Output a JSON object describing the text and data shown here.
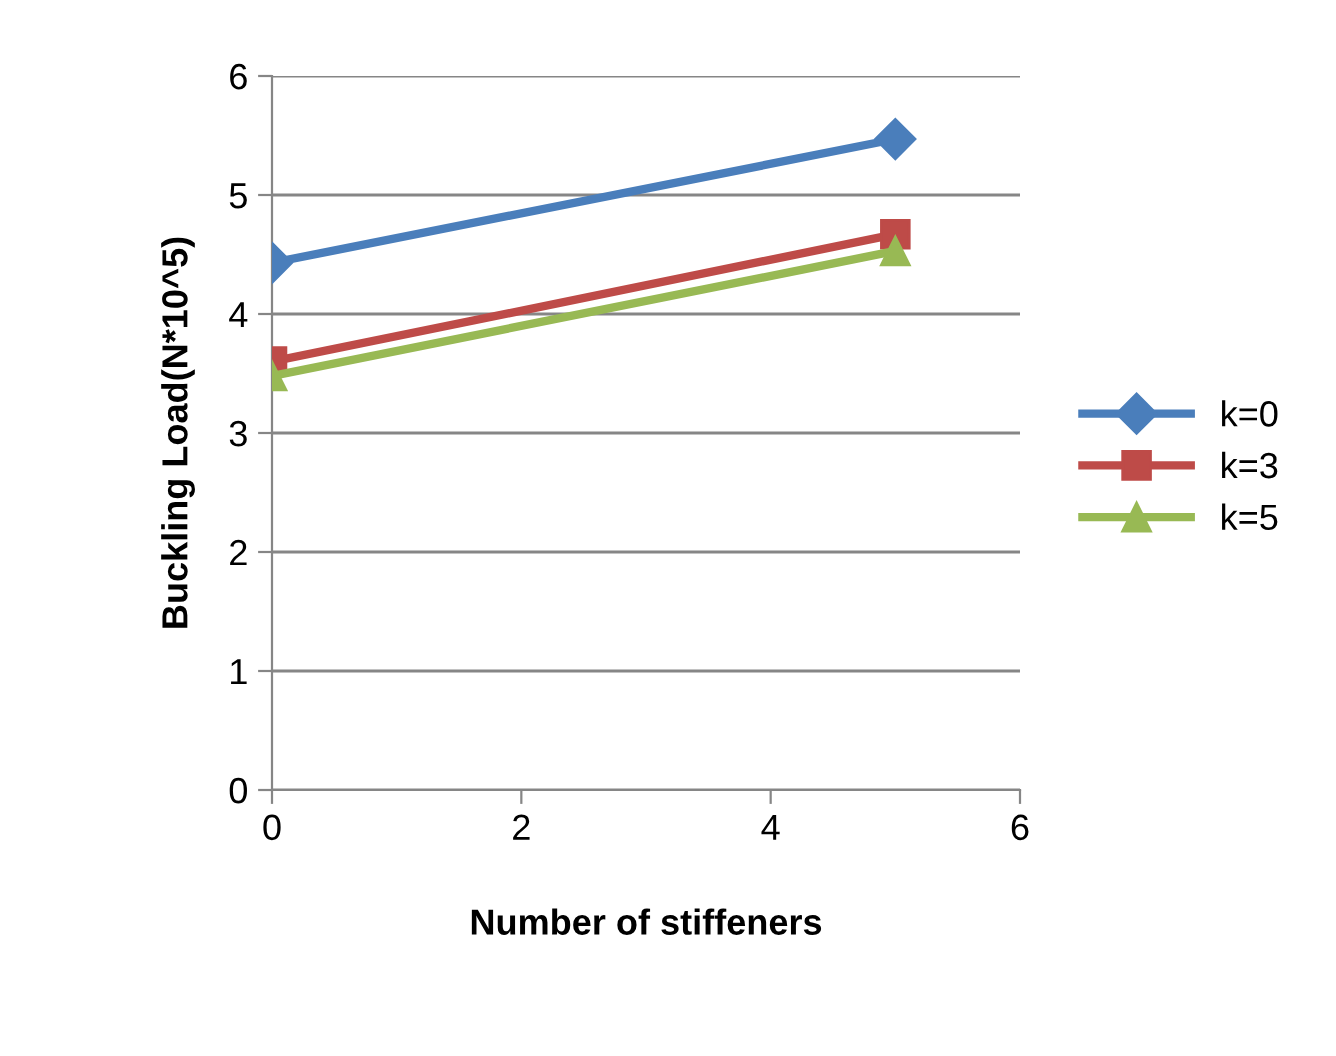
{
  "chart_data": {
    "type": "line",
    "xlabel": "Number of stiffeners",
    "ylabel": "Buckling Load(N*10^5)",
    "x": [
      0,
      5
    ],
    "series": [
      {
        "name": "k=0",
        "color": "#4a7ebb",
        "marker": "diamond",
        "values": [
          4.43,
          5.47
        ]
      },
      {
        "name": "k=3",
        "color": "#be4b48",
        "marker": "square",
        "values": [
          3.6,
          4.67
        ]
      },
      {
        "name": "k=5",
        "color": "#98b954",
        "marker": "triangle",
        "values": [
          3.48,
          4.53
        ]
      }
    ],
    "xlim": [
      0,
      6
    ],
    "xticks": [
      0,
      2,
      4,
      6
    ],
    "ylim": [
      0,
      6
    ],
    "yticks": [
      0,
      1,
      2,
      3,
      4,
      5,
      6
    ],
    "grid": "y",
    "legend": "right",
    "line_style": "solid"
  }
}
